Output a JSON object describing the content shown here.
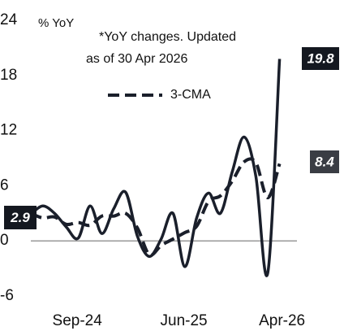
{
  "chart_data": {
    "type": "line",
    "y_label": "% YoY",
    "annotation": [
      "*YoY changes. Updated",
      "as of 30 Apr 2026"
    ],
    "categories": [
      null,
      null,
      "Sep-24",
      null,
      null,
      null,
      null,
      null,
      null,
      null,
      null,
      "Jun-25",
      null,
      null,
      null,
      null,
      null,
      null,
      null,
      null,
      null,
      "Apr-26"
    ],
    "series": [
      {
        "color": "#1a1f2b",
        "dash": false,
        "values": [
          2.9,
          3.8,
          3.0,
          1.5,
          0.3,
          3.8,
          0.8,
          3.5,
          5.3,
          0.5,
          -1.7,
          0.2,
          3.0,
          -2.8,
          2.5,
          5.2,
          3.0,
          7.5,
          11.3,
          7.0,
          -3.5,
          19.8
        ]
      },
      {
        "name": "3-CMA",
        "color": "#1a1f2b",
        "dash": true,
        "values": [
          3.0,
          2.5,
          2.6,
          1.8,
          2.0,
          1.7,
          2.7,
          2.7,
          3.0,
          1.4,
          -1.5,
          -0.5,
          0.2,
          0.9,
          1.6,
          4.3,
          4.9,
          6.5,
          8.6,
          8.5,
          4.7,
          8.4
        ]
      }
    ],
    "ylim": [
      -6,
      24
    ],
    "yticks": [
      -6,
      0,
      6,
      12,
      18,
      24
    ]
  }
}
